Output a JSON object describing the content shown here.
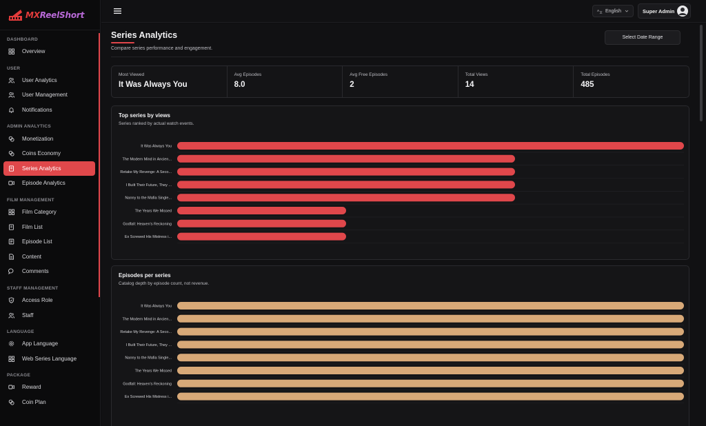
{
  "brand": {
    "part1": "MX",
    "part2": "ReelShort"
  },
  "sidebar": {
    "sections": [
      {
        "title": "DASHBOARD",
        "items": [
          {
            "label": "Overview",
            "icon": "grid-icon"
          }
        ]
      },
      {
        "title": "USER",
        "items": [
          {
            "label": "User Analytics",
            "icon": "users-icon"
          },
          {
            "label": "User Management",
            "icon": "users-icon"
          },
          {
            "label": "Notifications",
            "icon": "bell-icon"
          }
        ]
      },
      {
        "title": "ADMIN ANALYTICS",
        "items": [
          {
            "label": "Monetization",
            "icon": "coins-icon"
          },
          {
            "label": "Coins Economy",
            "icon": "coins-icon"
          },
          {
            "label": "Series Analytics",
            "icon": "book-icon",
            "active": true
          },
          {
            "label": "Episode Analytics",
            "icon": "video-icon"
          }
        ]
      },
      {
        "title": "FILM MANAGEMENT",
        "items": [
          {
            "label": "Film Category",
            "icon": "grid-icon"
          },
          {
            "label": "Film List",
            "icon": "book-icon"
          },
          {
            "label": "Episode List",
            "icon": "list-icon"
          },
          {
            "label": "Content",
            "icon": "file-icon"
          },
          {
            "label": "Comments",
            "icon": "comment-icon"
          }
        ]
      },
      {
        "title": "STAFF MANAGEMENT",
        "items": [
          {
            "label": "Access Role",
            "icon": "shield-icon"
          },
          {
            "label": "Staff",
            "icon": "users-icon"
          }
        ]
      },
      {
        "title": "LANGUAGE",
        "items": [
          {
            "label": "App Language",
            "icon": "gear-icon"
          },
          {
            "label": "Web Series Language",
            "icon": "grid-icon"
          }
        ]
      },
      {
        "title": "PACKAGE",
        "items": [
          {
            "label": "Reward",
            "icon": "video-icon"
          },
          {
            "label": "Coin Plan",
            "icon": "coins-icon"
          }
        ]
      }
    ]
  },
  "topbar": {
    "language": "English",
    "user": "Super Admin"
  },
  "page": {
    "title": "Series Analytics",
    "subtitle": "Compare series performance and engagement.",
    "date_range_button": "Select Date Range"
  },
  "stats": [
    {
      "label": "Most Viewed",
      "value": "It Was Always You"
    },
    {
      "label": "Avg Episodes",
      "value": "8.0"
    },
    {
      "label": "Avg Free Episodes",
      "value": "2"
    },
    {
      "label": "Total Views",
      "value": "14"
    },
    {
      "label": "Total Episodes",
      "value": "485"
    }
  ],
  "charts": {
    "views": {
      "title": "Top series by views",
      "subtitle": "Series ranked by actual watch events."
    },
    "episodes": {
      "title": "Episodes per series",
      "subtitle": "Catalog depth by episode count, not revenue."
    }
  },
  "chart_data": [
    {
      "type": "bar",
      "orientation": "horizontal",
      "title": "Top series by views",
      "subtitle": "Series ranked by actual watch events.",
      "categories": [
        "It Was Always You",
        "The Modern Mind in Ancien...",
        "Retake My Revenge: A Seco...",
        "I Built Their Future, They ...",
        "Nanny to the Mafia Single...",
        "The Years We Missed",
        "Godfall: Heaven's Reckoning",
        "Ex Screwed His Mistress i..."
      ],
      "values": [
        3,
        2,
        2,
        2,
        2,
        1,
        1,
        1
      ],
      "xlim": [
        0,
        3
      ],
      "color": "#e0474b",
      "grid": true
    },
    {
      "type": "bar",
      "orientation": "horizontal",
      "title": "Episodes per series",
      "subtitle": "Catalog depth by episode count, not revenue.",
      "categories": [
        "It Was Always You",
        "The Modern Mind in Ancien...",
        "Retake My Revenge: A Seco...",
        "I Built Their Future, They ...",
        "Nanny to the Mafia Single...",
        "The Years We Missed",
        "Godfall: Heaven's Reckoning",
        "Ex Screwed His Mistress i..."
      ],
      "values": [
        60,
        60,
        60,
        60,
        60,
        60,
        60,
        60
      ],
      "xlim": [
        0,
        60
      ],
      "color": "#d8a978",
      "grid": true
    }
  ]
}
